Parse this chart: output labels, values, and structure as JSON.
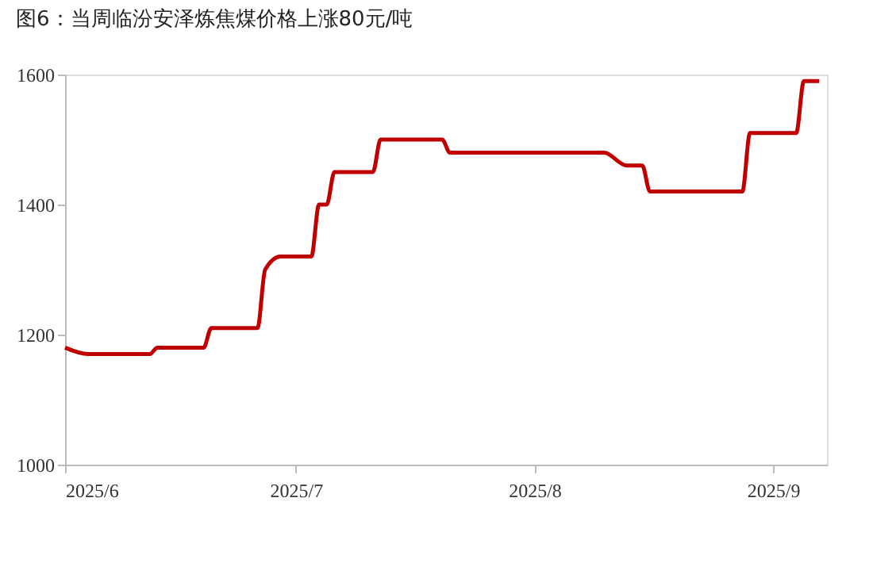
{
  "chart_data": {
    "type": "line",
    "title": "图6：当周临汾安泽炼焦煤价格上涨80元/吨",
    "x": [
      "2025-06-01",
      "2025-06-04",
      "2025-06-12",
      "2025-06-13",
      "2025-06-19",
      "2025-06-20",
      "2025-06-26",
      "2025-06-27",
      "2025-06-29",
      "2025-07-03",
      "2025-07-04",
      "2025-07-05",
      "2025-07-06",
      "2025-07-11",
      "2025-07-12",
      "2025-07-20",
      "2025-07-21",
      "2025-08-10",
      "2025-08-13",
      "2025-08-15",
      "2025-08-16",
      "2025-08-28",
      "2025-08-29",
      "2025-09-04",
      "2025-09-05",
      "2025-09-07"
    ],
    "series": [
      {
        "color": "#c00000",
        "values": [
          1180,
          1170,
          1170,
          1180,
          1180,
          1210,
          1210,
          1300,
          1320,
          1320,
          1400,
          1400,
          1450,
          1450,
          1500,
          1500,
          1480,
          1480,
          1460,
          1460,
          1420,
          1420,
          1510,
          1510,
          1590,
          1590
        ]
      }
    ],
    "xlim": [
      "2025-06-01",
      "2025-09-08"
    ],
    "xticks": [
      {
        "value": "2025-06-01",
        "label": "2025/6"
      },
      {
        "value": "2025-07-01",
        "label": "2025/7"
      },
      {
        "value": "2025-08-01",
        "label": "2025/8"
      },
      {
        "value": "2025-09-01",
        "label": "2025/9"
      }
    ],
    "ylim": [
      1000,
      1600
    ],
    "yticks": [
      1000,
      1200,
      1400,
      1600
    ],
    "grid": false,
    "marker": "none",
    "line_style": "solid"
  }
}
